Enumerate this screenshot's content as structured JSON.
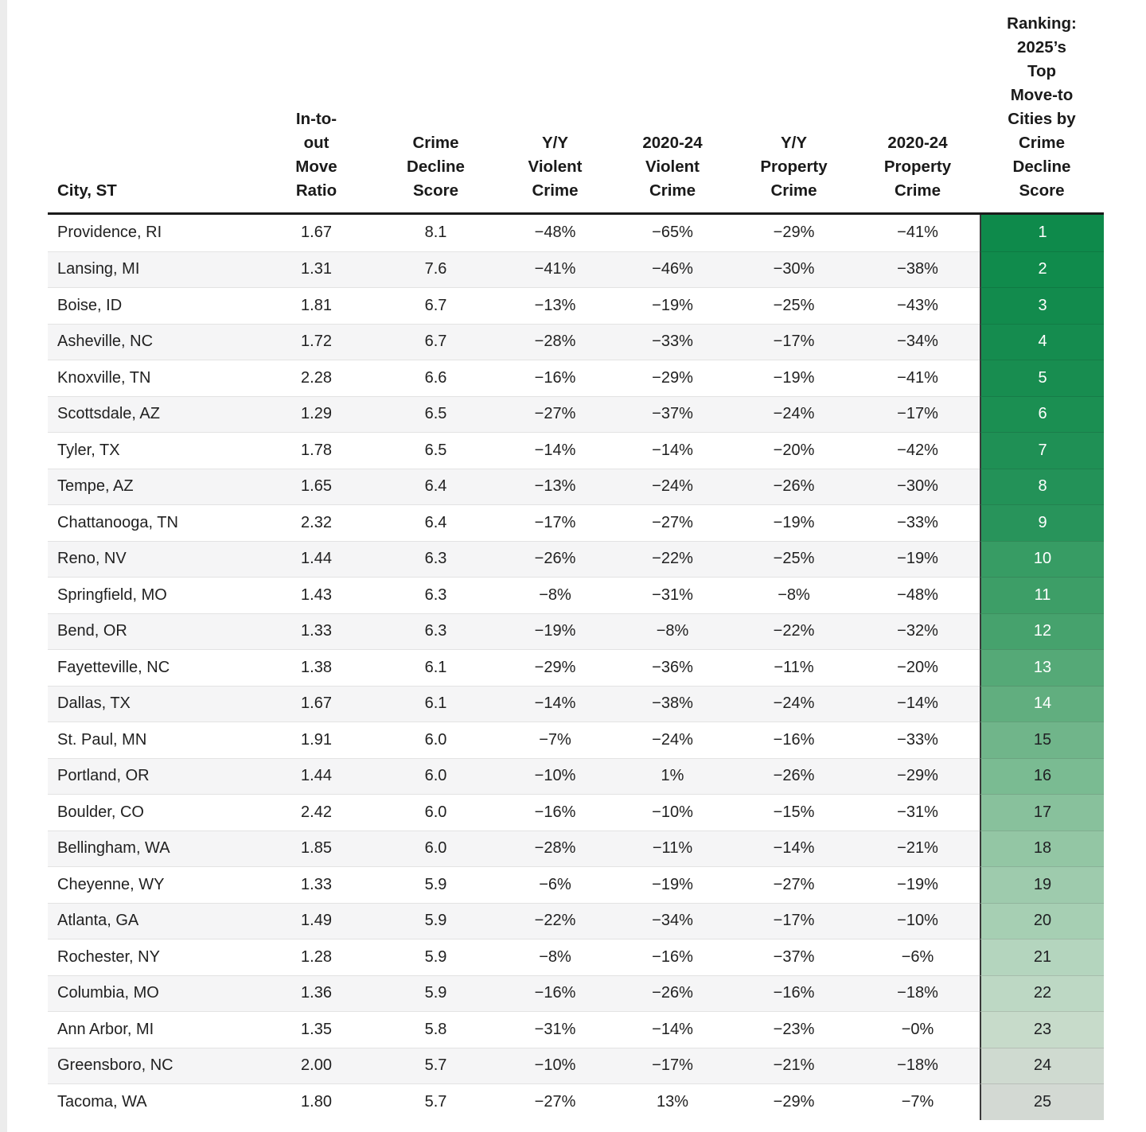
{
  "chart_data": {
    "type": "table",
    "title": "Ranking: 2025's Top Move-to Cities by Crime Decline Score",
    "columns": [
      {
        "id": "city",
        "label": "City, ST"
      },
      {
        "id": "move_ratio",
        "label": "In-to-\nout\nMove\nRatio"
      },
      {
        "id": "score",
        "label": "Crime\nDecline\nScore"
      },
      {
        "id": "yy_violent",
        "label": "Y/Y\nViolent\nCrime"
      },
      {
        "id": "violent_2020_24",
        "label": "2020-24\nViolent\nCrime"
      },
      {
        "id": "yy_property",
        "label": "Y/Y\nProperty\nCrime"
      },
      {
        "id": "property_2020_24",
        "label": "2020-24\nProperty\nCrime"
      },
      {
        "id": "rank",
        "label": "Ranking:\n2025’s\nTop\nMove-to\nCities by\nCrime\nDecline\nScore"
      }
    ],
    "rows": [
      {
        "city": "Providence, RI",
        "move_ratio": "1.67",
        "score": "8.1",
        "yy_violent": "−48%",
        "violent_2020_24": "−65%",
        "yy_property": "−29%",
        "property_2020_24": "−41%",
        "rank": "1",
        "rank_bg": "#0e8a4b",
        "rank_fg": "#ffffff"
      },
      {
        "city": "Lansing, MI",
        "move_ratio": "1.31",
        "score": "7.6",
        "yy_violent": "−41%",
        "violent_2020_24": "−46%",
        "yy_property": "−30%",
        "property_2020_24": "−38%",
        "rank": "2",
        "rank_bg": "#108b4c",
        "rank_fg": "#ffffff"
      },
      {
        "city": "Boise, ID",
        "move_ratio": "1.81",
        "score": "6.7",
        "yy_violent": "−13%",
        "violent_2020_24": "−19%",
        "yy_property": "−25%",
        "property_2020_24": "−43%",
        "rank": "3",
        "rank_bg": "#128b4d",
        "rank_fg": "#ffffff"
      },
      {
        "city": "Asheville, NC",
        "move_ratio": "1.72",
        "score": "6.7",
        "yy_violent": "−28%",
        "violent_2020_24": "−33%",
        "yy_property": "−17%",
        "property_2020_24": "−34%",
        "rank": "4",
        "rank_bg": "#158c4f",
        "rank_fg": "#ffffff"
      },
      {
        "city": "Knoxville, TN",
        "move_ratio": "2.28",
        "score": "6.6",
        "yy_violent": "−16%",
        "violent_2020_24": "−29%",
        "yy_property": "−19%",
        "property_2020_24": "−41%",
        "rank": "5",
        "rank_bg": "#188d50",
        "rank_fg": "#ffffff"
      },
      {
        "city": "Scottsdale, AZ",
        "move_ratio": "1.29",
        "score": "6.5",
        "yy_violent": "−27%",
        "violent_2020_24": "−37%",
        "yy_property": "−24%",
        "property_2020_24": "−17%",
        "rank": "6",
        "rank_bg": "#1b8f52",
        "rank_fg": "#ffffff"
      },
      {
        "city": "Tyler, TX",
        "move_ratio": "1.78",
        "score": "6.5",
        "yy_violent": "−14%",
        "violent_2020_24": "−14%",
        "yy_property": "−20%",
        "property_2020_24": "−42%",
        "rank": "7",
        "rank_bg": "#1f9055",
        "rank_fg": "#ffffff"
      },
      {
        "city": "Tempe, AZ",
        "move_ratio": "1.65",
        "score": "6.4",
        "yy_violent": "−13%",
        "violent_2020_24": "−24%",
        "yy_property": "−26%",
        "property_2020_24": "−30%",
        "rank": "8",
        "rank_bg": "#239258",
        "rank_fg": "#ffffff"
      },
      {
        "city": "Chattanooga, TN",
        "move_ratio": "2.32",
        "score": "6.4",
        "yy_violent": "−17%",
        "violent_2020_24": "−27%",
        "yy_property": "−19%",
        "property_2020_24": "−33%",
        "rank": "9",
        "rank_bg": "#28945b",
        "rank_fg": "#ffffff"
      },
      {
        "city": "Reno, NV",
        "move_ratio": "1.44",
        "score": "6.3",
        "yy_violent": "−26%",
        "violent_2020_24": "−22%",
        "yy_property": "−25%",
        "property_2020_24": "−19%",
        "rank": "10",
        "rank_bg": "#379c64",
        "rank_fg": "#ffffff"
      },
      {
        "city": "Springfield, MO",
        "move_ratio": "1.43",
        "score": "6.3",
        "yy_violent": "−8%",
        "violent_2020_24": "−31%",
        "yy_property": "−8%",
        "property_2020_24": "−48%",
        "rank": "11",
        "rank_bg": "#3d9e67",
        "rank_fg": "#ffffff"
      },
      {
        "city": "Bend, OR",
        "move_ratio": "1.33",
        "score": "6.3",
        "yy_violent": "−19%",
        "violent_2020_24": "−8%",
        "yy_property": "−22%",
        "property_2020_24": "−32%",
        "rank": "12",
        "rank_bg": "#46a26d",
        "rank_fg": "#ffffff"
      },
      {
        "city": "Fayetteville, NC",
        "move_ratio": "1.38",
        "score": "6.1",
        "yy_violent": "−29%",
        "violent_2020_24": "−36%",
        "yy_property": "−11%",
        "property_2020_24": "−20%",
        "rank": "13",
        "rank_bg": "#55a977",
        "rank_fg": "#ffffff"
      },
      {
        "city": "Dallas, TX",
        "move_ratio": "1.67",
        "score": "6.1",
        "yy_violent": "−14%",
        "violent_2020_24": "−38%",
        "yy_property": "−24%",
        "property_2020_24": "−14%",
        "rank": "14",
        "rank_bg": "#61ae7f",
        "rank_fg": "#ffffff"
      },
      {
        "city": "St. Paul, MN",
        "move_ratio": "1.91",
        "score": "6.0",
        "yy_violent": "−7%",
        "violent_2020_24": "−24%",
        "yy_property": "−16%",
        "property_2020_24": "−33%",
        "rank": "15",
        "rank_bg": "#70b58a",
        "rank_fg": "#202124"
      },
      {
        "city": "Portland, OR",
        "move_ratio": "1.44",
        "score": "6.0",
        "yy_violent": "−10%",
        "violent_2020_24": "1%",
        "yy_property": "−26%",
        "property_2020_24": "−29%",
        "rank": "16",
        "rank_bg": "#7abb92",
        "rank_fg": "#202124"
      },
      {
        "city": "Boulder, CO",
        "move_ratio": "2.42",
        "score": "6.0",
        "yy_violent": "−16%",
        "violent_2020_24": "−10%",
        "yy_property": "−15%",
        "property_2020_24": "−31%",
        "rank": "17",
        "rank_bg": "#88c19c",
        "rank_fg": "#202124"
      },
      {
        "city": "Bellingham, WA",
        "move_ratio": "1.85",
        "score": "6.0",
        "yy_violent": "−28%",
        "violent_2020_24": "−11%",
        "yy_property": "−14%",
        "property_2020_24": "−21%",
        "rank": "18",
        "rank_bg": "#93c6a4",
        "rank_fg": "#202124"
      },
      {
        "city": "Cheyenne, WY",
        "move_ratio": "1.33",
        "score": "5.9",
        "yy_violent": "−6%",
        "violent_2020_24": "−19%",
        "yy_property": "−27%",
        "property_2020_24": "−19%",
        "rank": "19",
        "rank_bg": "#9ecbad",
        "rank_fg": "#202124"
      },
      {
        "city": "Atlanta, GA",
        "move_ratio": "1.49",
        "score": "5.9",
        "yy_violent": "−22%",
        "violent_2020_24": "−34%",
        "yy_property": "−17%",
        "property_2020_24": "−10%",
        "rank": "20",
        "rank_bg": "#a6cfb3",
        "rank_fg": "#202124"
      },
      {
        "city": "Rochester, NY",
        "move_ratio": "1.28",
        "score": "5.9",
        "yy_violent": "−8%",
        "violent_2020_24": "−16%",
        "yy_property": "−37%",
        "property_2020_24": "−6%",
        "rank": "21",
        "rank_bg": "#b4d5be",
        "rank_fg": "#202124"
      },
      {
        "city": "Columbia, MO",
        "move_ratio": "1.36",
        "score": "5.9",
        "yy_violent": "−16%",
        "violent_2020_24": "−26%",
        "yy_property": "−16%",
        "property_2020_24": "−18%",
        "rank": "22",
        "rank_bg": "#bdd8c4",
        "rank_fg": "#202124"
      },
      {
        "city": "Ann Arbor, MI",
        "move_ratio": "1.35",
        "score": "5.8",
        "yy_violent": "−31%",
        "violent_2020_24": "−14%",
        "yy_property": "−23%",
        "property_2020_24": "−0%",
        "rank": "23",
        "rank_bg": "#c7dbca",
        "rank_fg": "#202124"
      },
      {
        "city": "Greensboro, NC",
        "move_ratio": "2.00",
        "score": "5.7",
        "yy_violent": "−10%",
        "violent_2020_24": "−17%",
        "yy_property": "−21%",
        "property_2020_24": "−18%",
        "rank": "24",
        "rank_bg": "#cfdad0",
        "rank_fg": "#202124"
      },
      {
        "city": "Tacoma, WA",
        "move_ratio": "1.80",
        "score": "5.7",
        "yy_violent": "−27%",
        "violent_2020_24": "13%",
        "yy_property": "−29%",
        "property_2020_24": "−7%",
        "rank": "25",
        "rank_bg": "#d3d9d3",
        "rank_fg": "#202124"
      }
    ],
    "layout_hints": {
      "rank_gradient": "dark green (rank 1) fading to gray (rank 25)",
      "row_alternation": "odd rows white, even rows light gray",
      "header_divider_color": "#1b1b1b"
    }
  }
}
